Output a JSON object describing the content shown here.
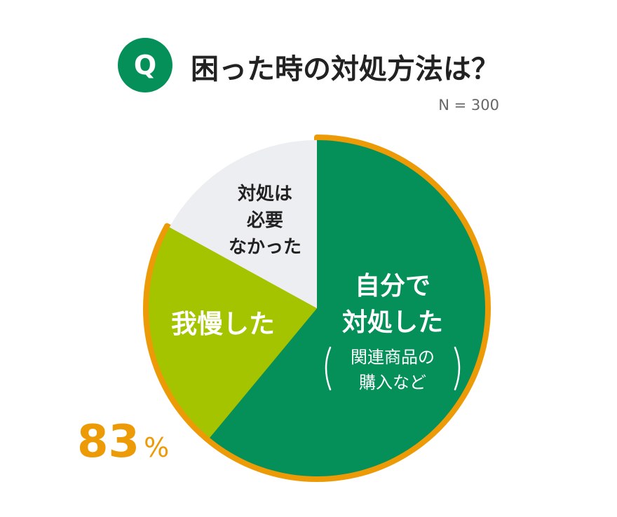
{
  "header": {
    "badge": "Q",
    "title": "困った時の対処方法は？",
    "sample_size": "N = 300"
  },
  "highlight": {
    "value": "83",
    "unit": "%"
  },
  "colors": {
    "green": "#05905a",
    "lime": "#a5c400",
    "gray": "#eceef1",
    "orange_border": "#ec9b07",
    "percent_text": "#ec9b07"
  },
  "chart_data": {
    "type": "pie",
    "slices": [
      {
        "label_lines": [
          "自分で",
          "対処した"
        ],
        "sub_label_lines": [
          "関連商品の",
          "購入など"
        ],
        "value": 61,
        "color": "#05905a",
        "text_color": "#ffffff"
      },
      {
        "label_lines": [
          "我慢した"
        ],
        "value": 22,
        "color": "#a5c400",
        "text_color": "#ffffff"
      },
      {
        "label_lines": [
          "対処は",
          "必要",
          "なかった"
        ],
        "value": 17,
        "color": "#eceef1",
        "text_color": "#222222"
      }
    ],
    "highlighted_slices": [
      0,
      1
    ],
    "highlight_value": 83
  }
}
